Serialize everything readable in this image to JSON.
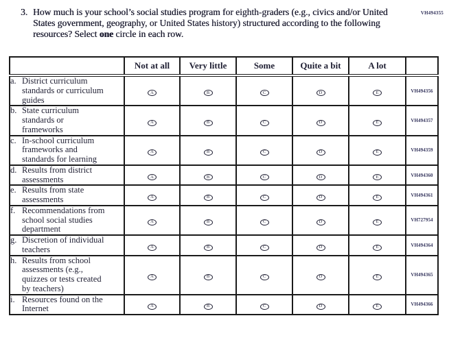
{
  "page": {
    "top_right_code": "VH494355"
  },
  "question": {
    "number": "3.",
    "text_before_bold": "How much is your school’s social studies program for eighth-graders (e.g., civics and/or United States government, geography, or United States history) structured according to the following resources? Select ",
    "bold_word": "one",
    "text_after_bold": " circle in each row."
  },
  "table": {
    "columns": [
      "Not at all",
      "Very little",
      "Some",
      "Quite a bit",
      "A lot"
    ],
    "bubble_letters": [
      "A",
      "B",
      "C",
      "D",
      "E"
    ],
    "rows": [
      {
        "letter": "a.",
        "label": "District curriculum standards or curriculum guides",
        "code": "VH494356"
      },
      {
        "letter": "b.",
        "label": "State curriculum standards or frameworks",
        "code": "VH494357"
      },
      {
        "letter": "c.",
        "label": "In-school curriculum frameworks and standards for learning",
        "code": "VH494359"
      },
      {
        "letter": "d.",
        "label": "Results from district assessments",
        "code": "VH494360"
      },
      {
        "letter": "e.",
        "label": "Results from state assessments",
        "code": "VH494361"
      },
      {
        "letter": "f.",
        "label": "Recommendations from school social studies department",
        "code": "VH727954"
      },
      {
        "letter": "g.",
        "label": "Discretion of individual teachers",
        "code": "VH494364"
      },
      {
        "letter": "h.",
        "label": "Results from school assessments (e.g., quizzes or tests created by teachers)",
        "code": "VH494365"
      },
      {
        "letter": "i.",
        "label": "Resources found on the Internet",
        "code": "VH494366"
      }
    ]
  },
  "colors": {
    "text": "#1f1f33",
    "code_text": "#34345c",
    "border": "#1a1a1a"
  }
}
